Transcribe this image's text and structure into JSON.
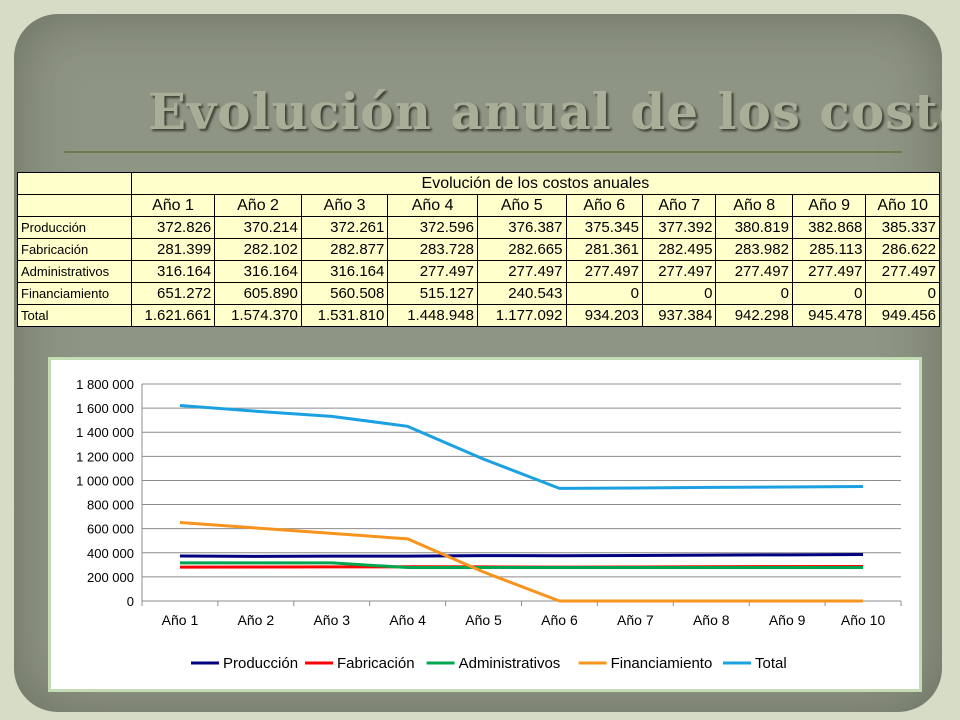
{
  "slide": {
    "title": "Evolución anual de los costos"
  },
  "table": {
    "title": "Evolución de los costos anuales",
    "columns": [
      "Año 1",
      "Año 2",
      "Año 3",
      "Año 4",
      "Año 5",
      "Año 6",
      "Año 7",
      "Año 8",
      "Año 9",
      "Año 10"
    ],
    "rows": [
      {
        "label": "Producción",
        "values": [
          "372.826",
          "370.214",
          "372.261",
          "372.596",
          "376.387",
          "375.345",
          "377.392",
          "380.819",
          "382.868",
          "385.337"
        ]
      },
      {
        "label": "Fabricación",
        "values": [
          "281.399",
          "282.102",
          "282.877",
          "283.728",
          "282.665",
          "281.361",
          "282.495",
          "283.982",
          "285.113",
          "286.622"
        ]
      },
      {
        "label": "Administrativos",
        "values": [
          "316.164",
          "316.164",
          "316.164",
          "277.497",
          "277.497",
          "277.497",
          "277.497",
          "277.497",
          "277.497",
          "277.497"
        ]
      },
      {
        "label": "Financiamiento",
        "values": [
          "651.272",
          "605.890",
          "560.508",
          "515.127",
          "240.543",
          "0",
          "0",
          "0",
          "0",
          "0"
        ]
      },
      {
        "label": "Total",
        "values": [
          "1.621.661",
          "1.574.370",
          "1.531.810",
          "1.448.948",
          "1.177.092",
          "934.203",
          "937.384",
          "942.298",
          "945.478",
          "949.456"
        ]
      }
    ]
  },
  "chart_data": {
    "type": "line",
    "categories": [
      "Año 1",
      "Año 2",
      "Año 3",
      "Año 4",
      "Año 5",
      "Año 6",
      "Año 7",
      "Año 8",
      "Año 9",
      "Año 10"
    ],
    "series": [
      {
        "name": "Producción",
        "color": "#000080",
        "values": [
          372826,
          370214,
          372261,
          372596,
          376387,
          375345,
          377392,
          380819,
          382868,
          385337
        ]
      },
      {
        "name": "Fabricación",
        "color": "#ff0000",
        "values": [
          281399,
          282102,
          282877,
          283728,
          282665,
          281361,
          282495,
          283982,
          285113,
          286622
        ]
      },
      {
        "name": "Administrativos",
        "color": "#00a550",
        "values": [
          316164,
          316164,
          316164,
          277497,
          277497,
          277497,
          277497,
          277497,
          277497,
          277497
        ]
      },
      {
        "name": "Financiamiento",
        "color": "#f7941d",
        "values": [
          651272,
          605890,
          560508,
          515127,
          240543,
          0,
          0,
          0,
          0,
          0
        ]
      },
      {
        "name": "Total",
        "color": "#1ba1e2",
        "values": [
          1621661,
          1574370,
          1531810,
          1448948,
          1177092,
          934203,
          937384,
          942298,
          945478,
          949456
        ]
      }
    ],
    "ylim": [
      0,
      1800000
    ],
    "yticks": [
      0,
      200000,
      400000,
      600000,
      800000,
      1000000,
      1200000,
      1400000,
      1600000,
      1800000
    ],
    "ytick_labels": [
      "0",
      "200 000",
      "400 000",
      "600 000",
      "800 000",
      "1 000 000",
      "1 200 000",
      "1 400 000",
      "1 600 000",
      "1 800 000"
    ],
    "grid": true,
    "legend": "bottom"
  }
}
